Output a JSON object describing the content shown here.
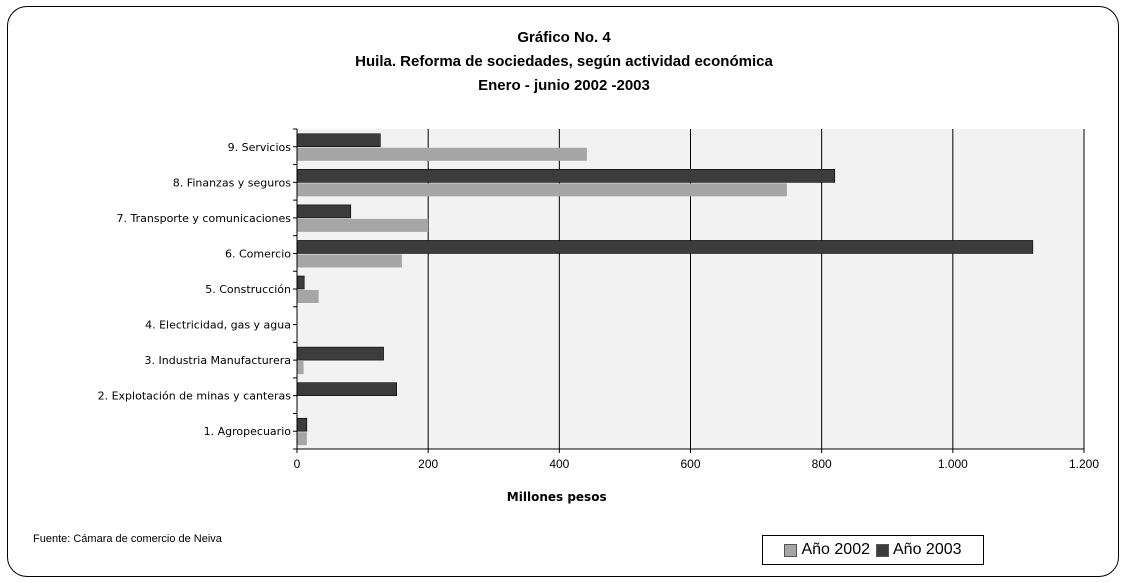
{
  "chart_data": {
    "type": "bar",
    "orientation": "horizontal",
    "title": "Gráfico No. 4",
    "subtitle": "Huila. Reforma de sociedades, según actividad económica",
    "subtitle2": "Enero - junio 2002 -2003",
    "categories": [
      "9. Servicios",
      "8. Finanzas y seguros",
      "7. Transporte y comunicaciones",
      "6. Comercio",
      "5. Construcción",
      "4. Electricidad, gas y agua",
      "3. Industria Manufacturera",
      "2. Explotación de minas y canteras",
      "1. Agropecuario"
    ],
    "series": [
      {
        "name": "Año 2002",
        "color": "#a6a6a6",
        "values": [
          442,
          747,
          200,
          160,
          33,
          0,
          10,
          0,
          15
        ]
      },
      {
        "name": "Año 2003",
        "color": "#3c3c3c",
        "values": [
          127,
          820,
          82,
          1122,
          11,
          0,
          132,
          152,
          15
        ]
      }
    ],
    "xlabel": "Millones pesos",
    "xlim": [
      0,
      1200
    ],
    "xticks": [
      0,
      200,
      400,
      600,
      800,
      1000,
      1200
    ],
    "xtick_labels": [
      "0",
      "200",
      "400",
      "600",
      "800",
      "1.000",
      "1.200"
    ],
    "grid": true,
    "legend_position": "bottom-right"
  },
  "source_note": "Fuente:  Cámara de comercio de Neiva",
  "colors": {
    "plot_background": "#f2f2f2",
    "series_2002": "#a6a6a6",
    "series_2003": "#3c3c3c"
  }
}
